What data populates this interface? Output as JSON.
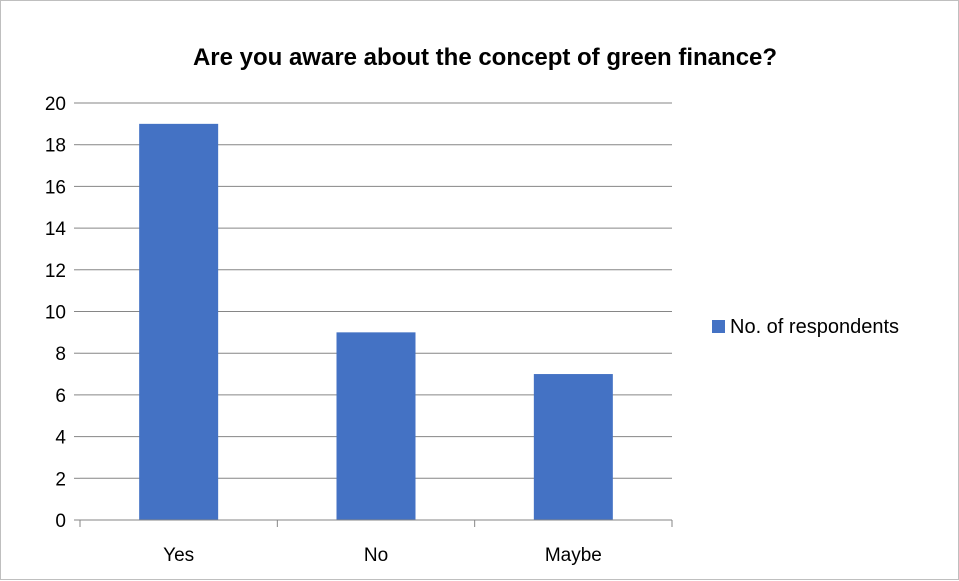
{
  "chart_data": {
    "type": "bar",
    "title": "Are you aware about the concept of green finance?",
    "xlabel": "",
    "ylabel": "",
    "categories": [
      "Yes",
      "No",
      "Maybe"
    ],
    "series": [
      {
        "name": "No. of respondents",
        "values": [
          19,
          9,
          7
        ],
        "color": "#4472c4"
      }
    ],
    "ylim": [
      0,
      20
    ],
    "yticks": [
      0,
      2,
      4,
      6,
      8,
      10,
      12,
      14,
      16,
      18,
      20
    ],
    "grid": true,
    "legend_position": "right",
    "colors": {
      "bar": "#4472c4",
      "grid": "#868686",
      "axis": "#868686",
      "frame": "#bfbfbf"
    }
  }
}
